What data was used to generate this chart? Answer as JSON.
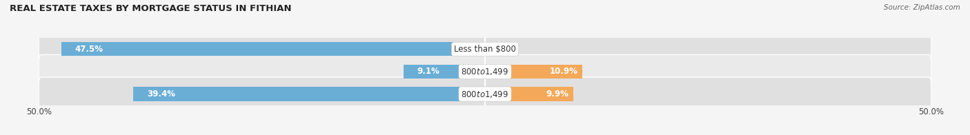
{
  "title": "REAL ESTATE TAXES BY MORTGAGE STATUS IN FITHIAN",
  "source": "Source: ZipAtlas.com",
  "bars": [
    {
      "label": "Less than $800",
      "without_mortgage": 47.5,
      "with_mortgage": 0.0
    },
    {
      "label": "$800 to $1,499",
      "without_mortgage": 9.1,
      "with_mortgage": 10.9
    },
    {
      "label": "$800 to $1,499",
      "without_mortgage": 39.4,
      "with_mortgage": 9.9
    }
  ],
  "xlim_left": -50,
  "xlim_right": 50,
  "color_without": "#6aaed6",
  "color_with": "#f4a95a",
  "color_row_odd": "#e8e8e8",
  "color_row_even": "#f2f2f2",
  "color_bg": "#f5f5f5",
  "bar_height": 0.62,
  "axis_label_left": "50.0%",
  "axis_label_right": "50.0%",
  "title_fontsize": 9.5,
  "label_fontsize": 8.5,
  "tick_fontsize": 8.5,
  "legend_fontsize": 8.5
}
